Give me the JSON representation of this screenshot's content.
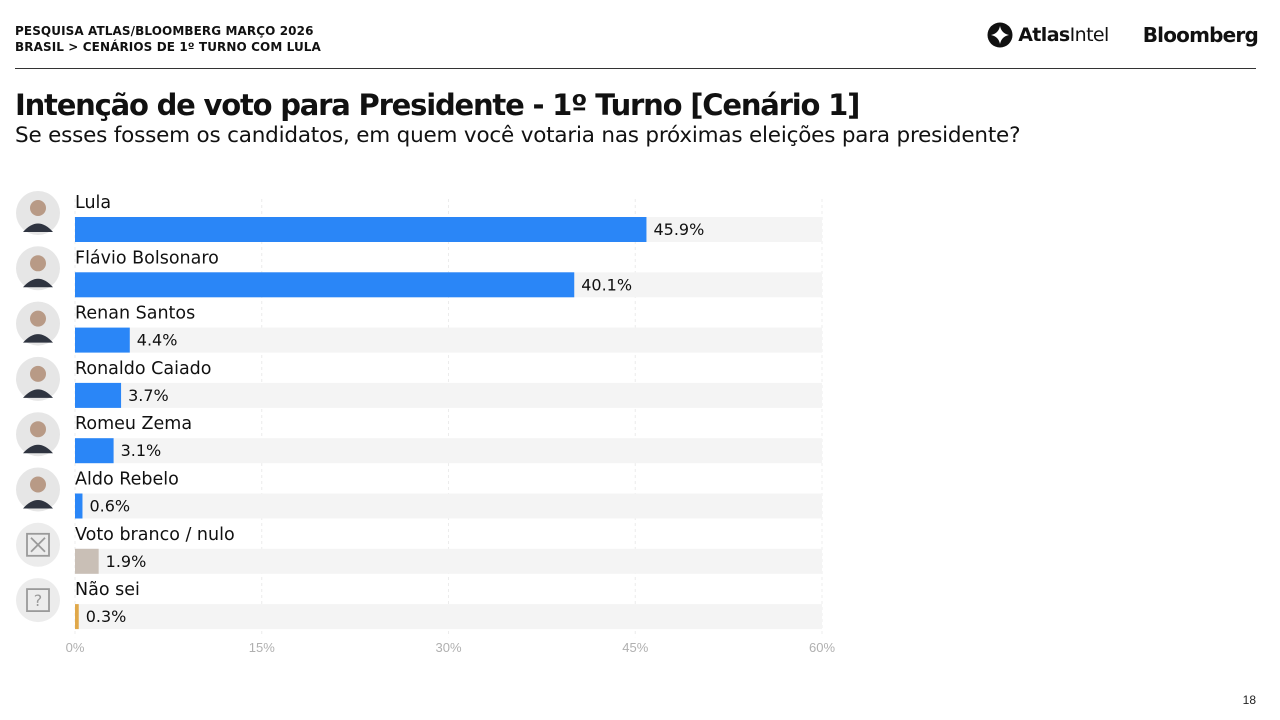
{
  "header": {
    "line1": "PESQUISA ATLAS/BLOOMBERG MARÇO 2026",
    "line2": "BRASIL > CENÁRIOS DE 1º TURNO COM LULA",
    "logo_atlas_bold": "Atlas",
    "logo_atlas_regular": "Intel",
    "logo_bloomberg": "Bloomberg"
  },
  "page_number": "18",
  "colors": {
    "candidate_bar": "#2a86f7",
    "blank_null_bar": "#c9bfb6",
    "dont_know_bar": "#e0a84a",
    "track": "#f4f4f4",
    "axis_text": "#b0b0b0"
  },
  "chart_data": {
    "type": "bar",
    "orientation": "horizontal",
    "title": "Intenção de voto para Presidente - 1º Turno [Cenário 1]",
    "subtitle": "Se esses fossem os candidatos, em quem você votaria nas próximas eleições para presidente?",
    "categories": [
      "Lula",
      "Flávio Bolsonaro",
      "Renan Santos",
      "Ronaldo Caiado",
      "Romeu Zema",
      "Aldo Rebelo",
      "Voto branco / nulo",
      "Não sei"
    ],
    "values": [
      45.9,
      40.1,
      4.4,
      3.7,
      3.1,
      0.6,
      1.9,
      0.3
    ],
    "value_labels": [
      "45.9%",
      "40.1%",
      "4.4%",
      "3.7%",
      "3.1%",
      "0.6%",
      "1.9%",
      "0.3%"
    ],
    "icons": [
      "avatar-photo",
      "avatar-photo",
      "avatar-photo",
      "avatar-photo",
      "avatar-photo",
      "avatar-photo",
      "x-box-icon",
      "question-box-icon"
    ],
    "bar_colors": [
      "#2a86f7",
      "#2a86f7",
      "#2a86f7",
      "#2a86f7",
      "#2a86f7",
      "#2a86f7",
      "#c9bfb6",
      "#e0a84a"
    ],
    "xlim": [
      0,
      60
    ],
    "xticks": [
      0,
      15,
      30,
      45,
      60
    ],
    "xtick_labels": [
      "0%",
      "15%",
      "30%",
      "45%",
      "60%"
    ],
    "grid": true,
    "legend": "none"
  }
}
